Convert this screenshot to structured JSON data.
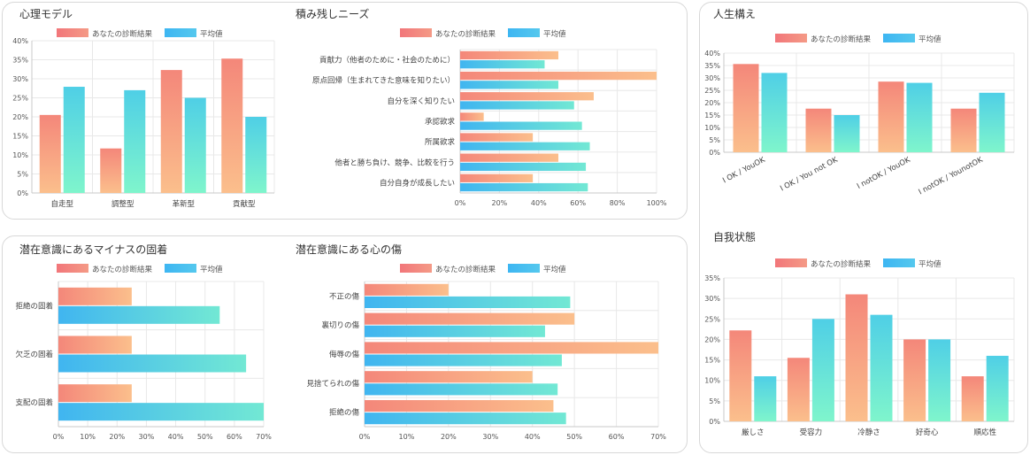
{
  "legend": {
    "result": "あなたの診断結果",
    "average": "平均値"
  },
  "charts": [
    {
      "key": "c1",
      "title": "心理モデル",
      "type": "bar",
      "categories": [
        "自走型",
        "調整型",
        "革新型",
        "貢献型"
      ],
      "series": [
        {
          "name": "あなたの診断結果",
          "values": [
            20.5,
            11.7,
            32.3,
            35.3
          ]
        },
        {
          "name": "平均値",
          "values": [
            27.9,
            27,
            25,
            20
          ]
        }
      ],
      "ylim": [
        0,
        40
      ],
      "step": 5,
      "ticks": [
        "0%",
        "5%",
        "10%",
        "15%",
        "20%",
        "25%",
        "30%",
        "35%",
        "40%"
      ]
    },
    {
      "key": "c2",
      "title": "積み残しニーズ",
      "type": "hbar",
      "categories": [
        "貢献力（他者のために・社会のために）",
        "原点回帰（生まれてきた意味を知りたい）",
        "自分を深く知りたい",
        "承認欲求",
        "所属欲求",
        "他者と勝ち負け、競争、比較を行う",
        "自分自身が成長したい"
      ],
      "series": [
        {
          "name": "あなたの診断結果",
          "values": [
            50,
            100,
            68,
            12,
            37,
            50,
            37
          ]
        },
        {
          "name": "平均値",
          "values": [
            43,
            50,
            58,
            62,
            66,
            64,
            65
          ]
        }
      ],
      "xlim": [
        0,
        100
      ],
      "step": 20,
      "ticks": [
        "0%",
        "20%",
        "40%",
        "60%",
        "80%",
        "100%"
      ]
    },
    {
      "key": "c3",
      "title": "人生構え",
      "type": "bar",
      "categories": [
        "I OK / YouOK",
        "I OK / You not OK",
        "I notOK / YouOK",
        "I notOK / YounotOK"
      ],
      "series": [
        {
          "name": "あなたの診断結果",
          "values": [
            35.6,
            17.6,
            28.5,
            17.6
          ]
        },
        {
          "name": "平均値",
          "values": [
            32,
            15,
            28,
            24
          ]
        }
      ],
      "ylim": [
        0,
        40
      ],
      "step": 5,
      "ticks": [
        "0%",
        "5%",
        "10%",
        "15%",
        "20%",
        "25%",
        "30%",
        "35%",
        "40%"
      ]
    },
    {
      "key": "c4",
      "title": "潜在意識にあるマイナスの固着",
      "type": "hbar",
      "categories": [
        "拒絶の固着",
        "欠乏の固着",
        "支配の固着"
      ],
      "series": [
        {
          "name": "あなたの診断結果",
          "values": [
            25,
            25,
            25
          ]
        },
        {
          "name": "平均値",
          "values": [
            55,
            64,
            70
          ]
        }
      ],
      "xlim": [
        0,
        70
      ],
      "step": 10,
      "ticks": [
        "0%",
        "10%",
        "20%",
        "30%",
        "40%",
        "50%",
        "60%",
        "70%"
      ]
    },
    {
      "key": "c5",
      "title": "潜在意識にある心の傷",
      "type": "hbar",
      "categories": [
        "不正の傷",
        "裏切りの傷",
        "侮辱の傷",
        "見捨てられの傷",
        "拒絶の傷"
      ],
      "series": [
        {
          "name": "あなたの診断結果",
          "values": [
            20,
            50,
            70,
            40,
            45
          ]
        },
        {
          "name": "平均値",
          "values": [
            49,
            43,
            47,
            46,
            48
          ]
        }
      ],
      "xlim": [
        0,
        70
      ],
      "step": 10,
      "ticks": [
        "0%",
        "10%",
        "20%",
        "30%",
        "40%",
        "50%",
        "60%",
        "70%"
      ]
    },
    {
      "key": "c6",
      "title": "自我状態",
      "type": "bar",
      "categories": [
        "厳しさ",
        "受容力",
        "冷静さ",
        "好奇心",
        "順応性"
      ],
      "series": [
        {
          "name": "あなたの診断結果",
          "values": [
            22.2,
            15.5,
            31,
            20,
            11
          ]
        },
        {
          "name": "平均値",
          "values": [
            11,
            25,
            26,
            20,
            16
          ]
        }
      ],
      "ylim": [
        0,
        35
      ],
      "step": 5,
      "ticks": [
        "0%",
        "5%",
        "10%",
        "15%",
        "20%",
        "25%",
        "30%",
        "35%"
      ]
    }
  ],
  "colors": {
    "card_border": "#d8d8d8",
    "grid": "#e8e8e8",
    "axis": "#c8c8c8"
  }
}
